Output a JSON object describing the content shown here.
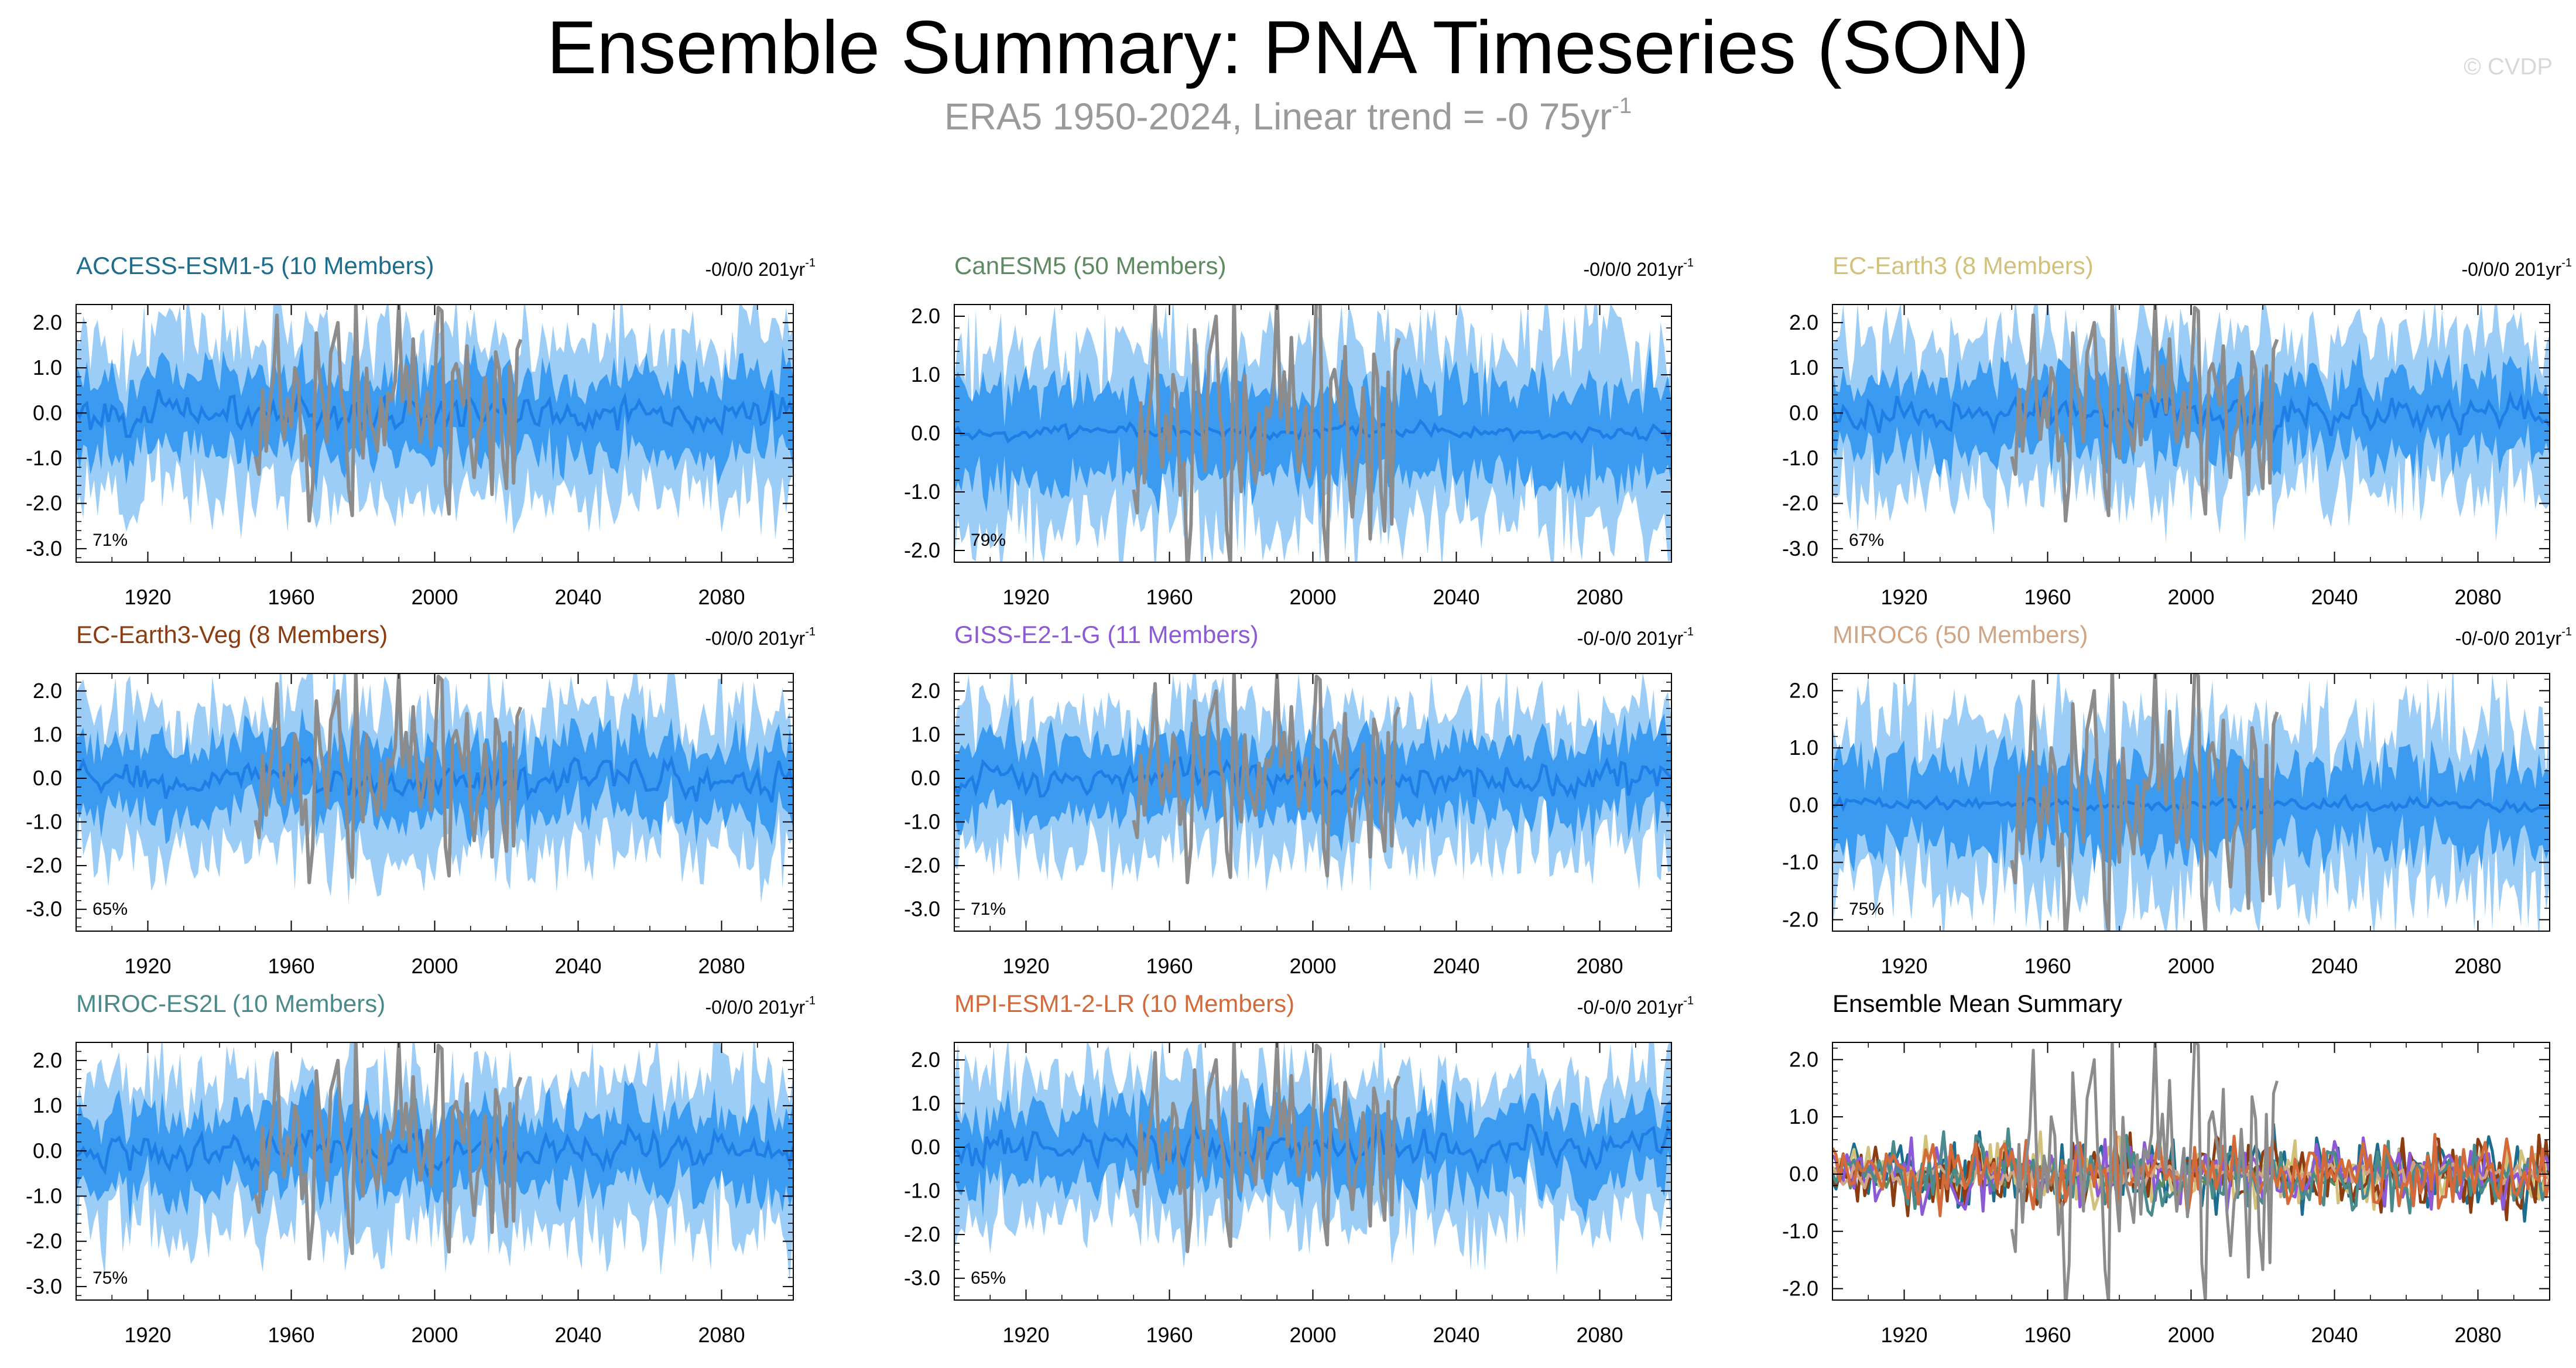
{
  "header": {
    "title": "Ensemble Summary: PNA Timeseries (SON)",
    "subtitle": "ERA5 1950-2024, Linear trend = -0 75yr",
    "subtitle_superscript": "-1",
    "watermark": "© CVDP"
  },
  "colors": {
    "outer_band": "#9ccdf7",
    "inner_band": "#3b9bf0",
    "ensemble_mean": "#1f7ee6",
    "observations": "#8c8c8c"
  },
  "chart_data": [
    {
      "type": "area",
      "title": "ACCESS-ESM1-5 (10 Members)",
      "title_color": "#1d6e8e",
      "trend_label": "-0/0/0 201yr",
      "trend_superscript": "-1",
      "percent_label": "71%",
      "xlim": [
        1900,
        2100
      ],
      "ylim": [
        -3.3,
        2.4
      ],
      "yticks": [
        -3,
        -2,
        -1,
        0,
        1,
        2
      ],
      "ytick_labels": [
        "-3.0",
        "-2.0",
        "-1.0",
        "0.0",
        "1.0",
        "2.0"
      ],
      "xticks": [
        1920,
        1960,
        2000,
        2040,
        2080
      ],
      "series": [
        {
          "name": "ensemble 10-90% range",
          "spread": 1.7
        },
        {
          "name": "ensemble 25-75% range",
          "spread": 0.85
        },
        {
          "name": "ensemble mean",
          "amplitude": 0.3
        },
        {
          "name": "ERA5",
          "x_range": [
            1950,
            2024
          ],
          "amplitude": 0.9
        }
      ]
    },
    {
      "type": "area",
      "title": "CanESM5 (50 Members)",
      "title_color": "#5e8a62",
      "trend_label": "-0/0/0 201yr",
      "trend_superscript": "-1",
      "percent_label": "79%",
      "xlim": [
        1900,
        2100
      ],
      "ylim": [
        -2.2,
        2.2
      ],
      "yticks": [
        -2,
        -1,
        0,
        1,
        2
      ],
      "ytick_labels": [
        "-2.0",
        "-1.0",
        "0.0",
        "1.0",
        "2.0"
      ],
      "xticks": [
        1920,
        1960,
        2000,
        2040,
        2080
      ],
      "series": [
        {
          "name": "ensemble 10-90% range",
          "spread": 1.45
        },
        {
          "name": "ensemble 25-75% range",
          "spread": 0.75
        },
        {
          "name": "ensemble mean",
          "amplitude": 0.1
        },
        {
          "name": "ERA5",
          "x_range": [
            1950,
            2024
          ],
          "amplitude": 0.9
        }
      ]
    },
    {
      "type": "area",
      "title": "EC-Earth3 (8 Members)",
      "title_color": "#d2c17a",
      "trend_label": "-0/0/0 201yr",
      "trend_superscript": "-1",
      "percent_label": "67%",
      "xlim": [
        1900,
        2100
      ],
      "ylim": [
        -3.3,
        2.4
      ],
      "yticks": [
        -3,
        -2,
        -1,
        0,
        1,
        2
      ],
      "ytick_labels": [
        "-3.0",
        "-2.0",
        "-1.0",
        "0.0",
        "1.0",
        "2.0"
      ],
      "xticks": [
        1920,
        1960,
        2000,
        2040,
        2080
      ],
      "series": [
        {
          "name": "ensemble 10-90% range",
          "spread": 1.6
        },
        {
          "name": "ensemble 25-75% range",
          "spread": 0.8
        },
        {
          "name": "ensemble mean",
          "amplitude": 0.3
        },
        {
          "name": "ERA5",
          "x_range": [
            1950,
            2024
          ],
          "amplitude": 0.9
        }
      ]
    },
    {
      "type": "area",
      "title": "EC-Earth3-Veg (8 Members)",
      "title_color": "#8b3c10",
      "trend_label": "-0/0/0 201yr",
      "trend_superscript": "-1",
      "percent_label": "65%",
      "xlim": [
        1900,
        2100
      ],
      "ylim": [
        -3.5,
        2.4
      ],
      "yticks": [
        -3,
        -2,
        -1,
        0,
        1,
        2
      ],
      "ytick_labels": [
        "-3.0",
        "-2.0",
        "-1.0",
        "0.0",
        "1.0",
        "2.0"
      ],
      "xticks": [
        1920,
        1960,
        2000,
        2040,
        2080
      ],
      "series": [
        {
          "name": "ensemble 10-90% range",
          "spread": 1.6
        },
        {
          "name": "ensemble 25-75% range",
          "spread": 0.8
        },
        {
          "name": "ensemble mean",
          "amplitude": 0.3
        },
        {
          "name": "ERA5",
          "x_range": [
            1950,
            2024
          ],
          "amplitude": 0.9
        }
      ]
    },
    {
      "type": "area",
      "title": "GISS-E2-1-G (11 Members)",
      "title_color": "#8c5ad6",
      "trend_label": "-0/-0/0 201yr",
      "trend_superscript": "-1",
      "percent_label": "71%",
      "xlim": [
        1900,
        2100
      ],
      "ylim": [
        -3.5,
        2.4
      ],
      "yticks": [
        -3,
        -2,
        -1,
        0,
        1,
        2
      ],
      "ytick_labels": [
        "-3.0",
        "-2.0",
        "-1.0",
        "0.0",
        "1.0",
        "2.0"
      ],
      "xticks": [
        1920,
        1960,
        2000,
        2040,
        2080
      ],
      "series": [
        {
          "name": "ensemble 10-90% range",
          "spread": 1.55
        },
        {
          "name": "ensemble 25-75% range",
          "spread": 0.8
        },
        {
          "name": "ensemble mean",
          "amplitude": 0.28
        },
        {
          "name": "ERA5",
          "x_range": [
            1950,
            2024
          ],
          "amplitude": 0.9
        }
      ]
    },
    {
      "type": "area",
      "title": "MIROC6 (50 Members)",
      "title_color": "#d0a585",
      "trend_label": "-0/-0/0 201yr",
      "trend_superscript": "-1",
      "percent_label": "75%",
      "xlim": [
        1900,
        2100
      ],
      "ylim": [
        -2.2,
        2.3
      ],
      "yticks": [
        -2,
        -1,
        0,
        1,
        2
      ],
      "ytick_labels": [
        "-2.0",
        "-1.0",
        "0.0",
        "1.0",
        "2.0"
      ],
      "xticks": [
        1920,
        1960,
        2000,
        2040,
        2080
      ],
      "series": [
        {
          "name": "ensemble 10-90% range",
          "spread": 1.4
        },
        {
          "name": "ensemble 25-75% range",
          "spread": 0.7
        },
        {
          "name": "ensemble mean",
          "amplitude": 0.08
        },
        {
          "name": "ERA5",
          "x_range": [
            1950,
            2024
          ],
          "amplitude": 0.9
        }
      ]
    },
    {
      "type": "area",
      "title": "MIROC-ES2L (10 Members)",
      "title_color": "#4a8a8a",
      "trend_label": "-0/0/0 201yr",
      "trend_superscript": "-1",
      "percent_label": "75%",
      "xlim": [
        1900,
        2100
      ],
      "ylim": [
        -3.3,
        2.4
      ],
      "yticks": [
        -3,
        -2,
        -1,
        0,
        1,
        2
      ],
      "ytick_labels": [
        "-3.0",
        "-2.0",
        "-1.0",
        "0.0",
        "1.0",
        "2.0"
      ],
      "xticks": [
        1920,
        1960,
        2000,
        2040,
        2080
      ],
      "series": [
        {
          "name": "ensemble 10-90% range",
          "spread": 1.6
        },
        {
          "name": "ensemble 25-75% range",
          "spread": 0.8
        },
        {
          "name": "ensemble mean",
          "amplitude": 0.3
        },
        {
          "name": "ERA5",
          "x_range": [
            1950,
            2024
          ],
          "amplitude": 0.9
        }
      ]
    },
    {
      "type": "area",
      "title": "MPI-ESM1-2-LR (10 Members)",
      "title_color": "#d46a3a",
      "trend_label": "-0/-0/0 201yr",
      "trend_superscript": "-1",
      "percent_label": "65%",
      "xlim": [
        1900,
        2100
      ],
      "ylim": [
        -3.5,
        2.4
      ],
      "yticks": [
        -3,
        -2,
        -1,
        0,
        1,
        2
      ],
      "ytick_labels": [
        "-3.0",
        "-2.0",
        "-1.0",
        "0.0",
        "1.0",
        "2.0"
      ],
      "xticks": [
        1920,
        1960,
        2000,
        2040,
        2080
      ],
      "series": [
        {
          "name": "ensemble 10-90% range",
          "spread": 1.6
        },
        {
          "name": "ensemble 25-75% range",
          "spread": 0.8
        },
        {
          "name": "ensemble mean",
          "amplitude": 0.3
        },
        {
          "name": "ERA5",
          "x_range": [
            1950,
            2024
          ],
          "amplitude": 0.9
        }
      ]
    },
    {
      "type": "line",
      "title": "Ensemble Mean Summary",
      "title_color": "#000000",
      "xlim": [
        1900,
        2100
      ],
      "ylim": [
        -2.2,
        2.3
      ],
      "yticks": [
        -2,
        -1,
        0,
        1,
        2
      ],
      "ytick_labels": [
        "-2.0",
        "-1.0",
        "0.0",
        "1.0",
        "2.0"
      ],
      "xticks": [
        1920,
        1960,
        2000,
        2040,
        2080
      ],
      "series": [
        {
          "color": "#1d6e8e",
          "amplitude": 0.35
        },
        {
          "color": "#5e8a62",
          "amplitude": 0.12
        },
        {
          "color": "#d2c17a",
          "amplitude": 0.35
        },
        {
          "color": "#8b3c10",
          "amplitude": 0.35
        },
        {
          "color": "#8c5ad6",
          "amplitude": 0.3
        },
        {
          "color": "#d0a585",
          "amplitude": 0.1
        },
        {
          "color": "#4a8a8a",
          "amplitude": 0.35
        },
        {
          "color": "#d46a3a",
          "amplitude": 0.35
        },
        {
          "color": "#8c8c8c",
          "x_range": [
            1950,
            2024
          ],
          "amplitude": 0.9
        }
      ]
    }
  ]
}
